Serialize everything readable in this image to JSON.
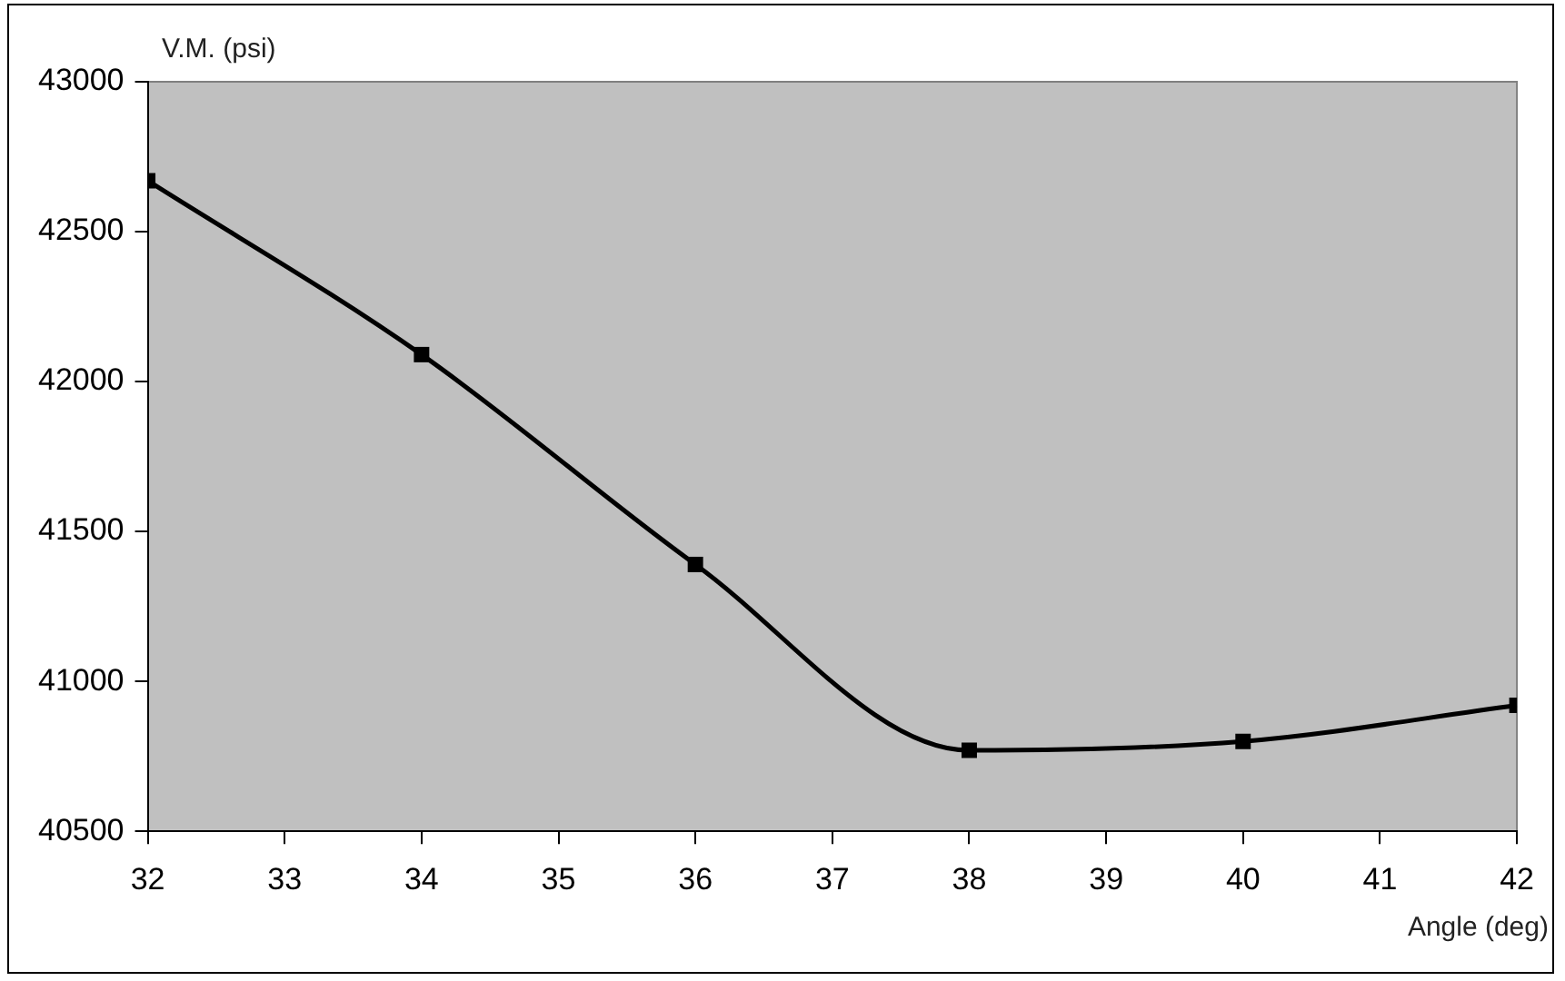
{
  "chart_data": {
    "type": "line",
    "xlabel": "Angle (deg)",
    "ylabel": "V.M. (psi)",
    "x": [
      32,
      34,
      36,
      38,
      40,
      42
    ],
    "values": [
      42670,
      42090,
      41390,
      40770,
      40800,
      40920
    ],
    "color": "#000000",
    "marker": "square",
    "xlim": [
      32,
      42
    ],
    "xticks": [
      32,
      33,
      34,
      35,
      36,
      37,
      38,
      39,
      40,
      41,
      42
    ],
    "ylim": [
      40500,
      43000
    ],
    "yticks": [
      40500,
      41000,
      41500,
      42000,
      42500,
      43000
    ]
  }
}
